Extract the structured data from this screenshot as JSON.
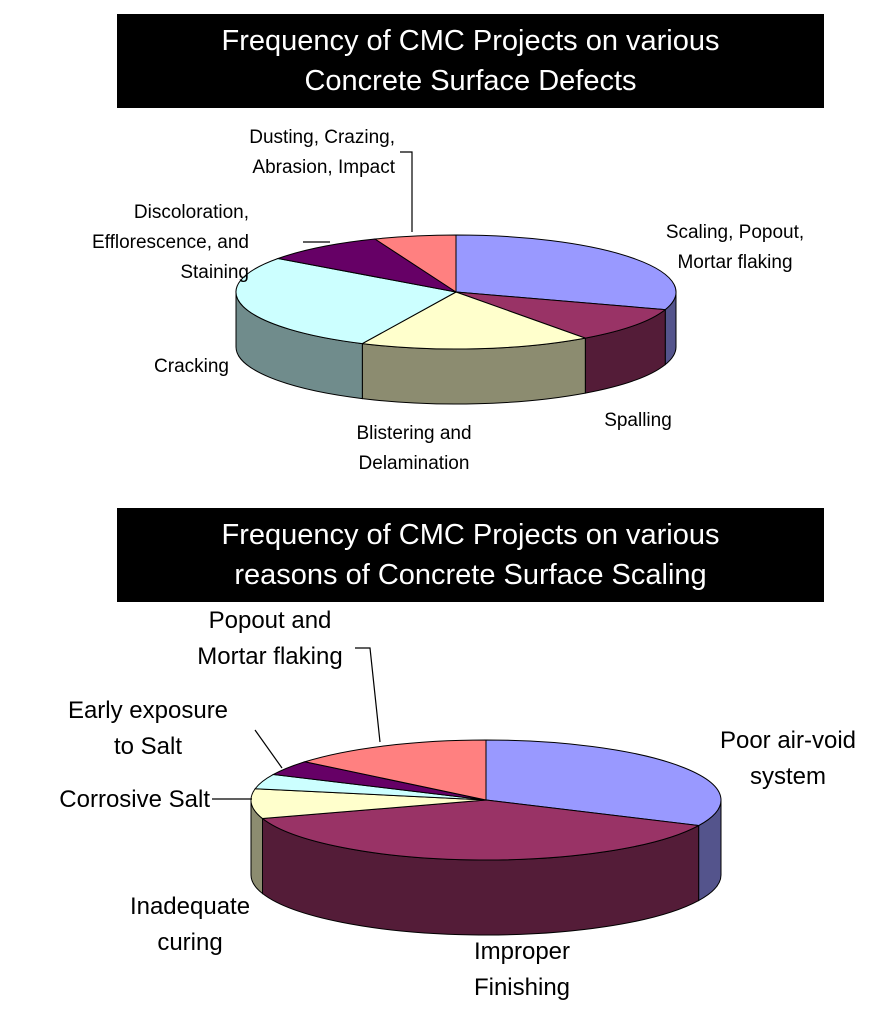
{
  "chart_data": [
    {
      "type": "pie",
      "title": "Frequency of CMC Projects on various Concrete Surface Defects",
      "title_lines": [
        "Frequency of CMC Projects on various",
        "Concrete Surface Defects"
      ],
      "three_d": true,
      "start": "12 o'clock",
      "direction": "clockwise",
      "slices": [
        {
          "label_lines": [
            "Scaling, Popout,",
            "Mortar flaking"
          ],
          "value": 30,
          "color": "#9999ff"
        },
        {
          "label_lines": [
            "Spalling"
          ],
          "value": 10,
          "color": "#993366"
        },
        {
          "label_lines": [
            "Blistering and",
            "Delamination"
          ],
          "value": 17,
          "color": "#ffffcc"
        },
        {
          "label_lines": [
            "Cracking"
          ],
          "value": 28,
          "color": "#ccffff"
        },
        {
          "label_lines": [
            "Discoloration,",
            "Efflorescence, and",
            "Staining"
          ],
          "value": 9,
          "color": "#660066"
        },
        {
          "label_lines": [
            "Dusting, Crazing,",
            "Abrasion, Impact"
          ],
          "value": 6,
          "color": "#ff8080"
        }
      ]
    },
    {
      "type": "pie",
      "title": "Frequency of CMC Projects on various reasons of Concrete Surface Scaling",
      "title_lines": [
        "Frequency of CMC Projects on various",
        "reasons of Concrete Surface Scaling"
      ],
      "three_d": true,
      "start": "12 o'clock",
      "direction": "clockwise",
      "slices": [
        {
          "label_lines": [
            "Poor air-void",
            "system"
          ],
          "value": 32,
          "color": "#9999ff"
        },
        {
          "label_lines": [
            "Improper",
            "Finishing"
          ],
          "value": 38,
          "color": "#993366"
        },
        {
          "label_lines": [
            "Inadequate",
            "curing"
          ],
          "value": 8,
          "color": "#ffffcc"
        },
        {
          "label_lines": [
            "Corrosive Salt"
          ],
          "value": 4,
          "color": "#ccffff"
        },
        {
          "label_lines": [
            "Early exposure",
            "to Salt"
          ],
          "value": 4,
          "color": "#660066"
        },
        {
          "label_lines": [
            "Popout and",
            "Mortar flaking"
          ],
          "value": 14,
          "color": "#ff8080"
        }
      ]
    }
  ]
}
